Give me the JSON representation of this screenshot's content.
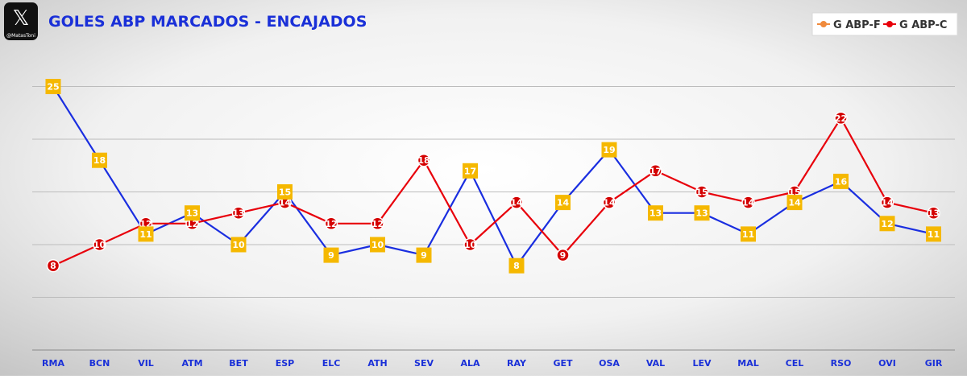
{
  "watermark": {
    "icon": "x-logo-icon",
    "handle": "@MatasToni"
  },
  "chart_data": {
    "type": "line",
    "title": "GOLES ABP MARCADOS - ENCAJADOS",
    "xlabel": "",
    "ylabel": "",
    "categories": [
      "RMA",
      "BCN",
      "VIL",
      "ATM",
      "BET",
      "ESP",
      "ELC",
      "ATH",
      "SEV",
      "ALA",
      "RAY",
      "GET",
      "OSA",
      "VAL",
      "LEV",
      "MAL",
      "CEL",
      "RSO",
      "OVI",
      "GIR"
    ],
    "ylim": [
      0,
      30
    ],
    "grid": true,
    "legend_position": "top-right",
    "series": [
      {
        "name": "G ABP-F",
        "line_color": "#1a2ee0",
        "label_color": "#f5b800",
        "legend_marker_color": "#f08a3c",
        "values": [
          25,
          18,
          11,
          13,
          10,
          15,
          9,
          10,
          9,
          17,
          8,
          14,
          19,
          13,
          13,
          11,
          14,
          16,
          12,
          11
        ]
      },
      {
        "name": "G ABP-C",
        "line_color": "#e8000b",
        "label_color": "#d40000",
        "values": [
          8,
          10,
          12,
          12,
          13,
          14,
          12,
          12,
          18,
          10,
          14,
          9,
          14,
          17,
          15,
          14,
          15,
          22,
          14,
          13
        ]
      }
    ]
  }
}
